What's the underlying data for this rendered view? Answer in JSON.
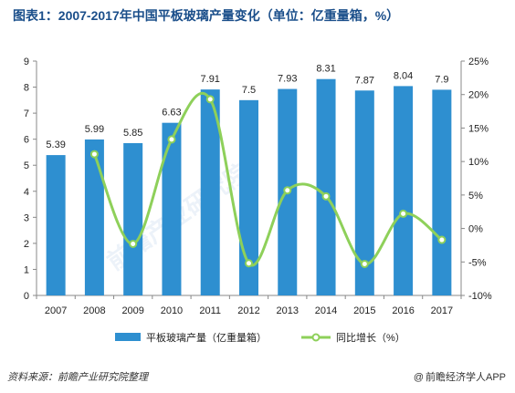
{
  "title": "图表1：2007-2017年中国平板玻璃产量变化（单位：亿重量箱，%）",
  "source": "资料来源：前瞻产业研究院整理",
  "brand": "前瞻经济学人APP",
  "watermark": "前瞻产业研究院",
  "colors": {
    "bar": "#2e8fd0",
    "line": "#8ed05a",
    "marker_fill": "#ffffff",
    "title": "#1a4e8a"
  },
  "chart_data": {
    "type": "bar",
    "categories": [
      "2007",
      "2008",
      "2009",
      "2010",
      "2011",
      "2012",
      "2013",
      "2014",
      "2015",
      "2016",
      "2017"
    ],
    "series": [
      {
        "name": "平板玻璃产量（亿重量箱）",
        "type": "bar",
        "axis": "left",
        "values": [
          5.39,
          5.99,
          5.85,
          6.63,
          7.91,
          7.5,
          7.93,
          8.31,
          7.87,
          8.04,
          7.9
        ]
      },
      {
        "name": "同比增长（%）",
        "type": "line",
        "axis": "right",
        "smooth": true,
        "values": [
          null,
          11.1,
          -2.3,
          13.3,
          19.3,
          -5.2,
          5.7,
          4.8,
          -5.3,
          2.2,
          -1.7
        ]
      }
    ],
    "y_left": {
      "min": 0,
      "max": 9,
      "step": 1,
      "ticks": [
        "0",
        "1",
        "2",
        "3",
        "4",
        "5",
        "6",
        "7",
        "8",
        "9"
      ]
    },
    "y_right": {
      "min": -10,
      "max": 25,
      "step": 5,
      "ticks": [
        "-10%",
        "-5%",
        "0%",
        "5%",
        "10%",
        "15%",
        "20%",
        "25%"
      ]
    },
    "data_labels": [
      "5.39",
      "5.99",
      "5.85",
      "6.63",
      "7.91",
      "7.5",
      "7.93",
      "8.31",
      "7.87",
      "8.04",
      "7.9"
    ],
    "legend": [
      {
        "label": "平板玻璃产量（亿重量箱）",
        "kind": "bar"
      },
      {
        "label": "同比增长（%）",
        "kind": "line"
      }
    ],
    "legend_position": "bottom",
    "grid": false
  }
}
